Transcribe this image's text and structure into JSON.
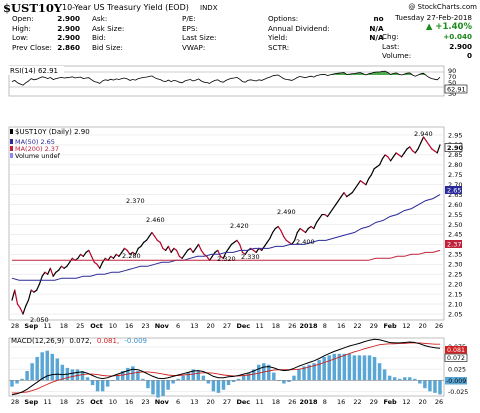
{
  "header": {
    "symbol": "$UST10Y",
    "description": "10-Year US Treasury Yield (EOD)",
    "exchange": "INDX",
    "copyright": "@ StockCharts.com",
    "date": "Tuesday  27-Feb-2018",
    "change_pct": "+1.40%",
    "stats": {
      "open_label": "Open:",
      "open": "2.900",
      "high_label": "High:",
      "high": "2.900",
      "low_label": "Low:",
      "low": "2.900",
      "prev_close_label": "Prev Close:",
      "prev_close": "2.860",
      "ask_label": "Ask:",
      "ask_size_label": "Ask Size:",
      "bid_label": "Bid:",
      "bid_size_label": "Bid Size:",
      "pe_label": "P/E:",
      "eps_label": "EPS:",
      "last_size_label": "Last Size:",
      "vwap_label": "VWAP:",
      "options_label": "Options:",
      "options": "no",
      "annual_div_label": "Annual Dividend:",
      "annual_div": "N/A",
      "yield_label": "Yield:",
      "yield": "N/A",
      "sctr_label": "SCTR:",
      "chg_label": "Chg:",
      "chg": "+0.040",
      "last_label": "Last:",
      "last": "2.900",
      "volume_label": "Volume:",
      "volume": "0"
    }
  },
  "rsi_panel": {
    "label": "RSI(14) 62.91",
    "current": "62.91",
    "ticks": [
      "90",
      "70",
      "50",
      "30",
      "10"
    ]
  },
  "price_panel": {
    "legend": {
      "price": "$UST10Y (Daily) 2.90",
      "ma50": "MA(50) 2.65",
      "ma200": "MA(200) 2.37",
      "volume": "Volume undef"
    },
    "y_ticks": [
      "2.95",
      "2.90",
      "2.85",
      "2.80",
      "2.75",
      "2.70",
      "2.65",
      "2.60",
      "2.55",
      "2.50",
      "2.45",
      "2.40",
      "2.35",
      "2.30",
      "2.25",
      "2.20",
      "2.15",
      "2.10",
      "2.05"
    ],
    "last_labels": {
      "price": "2.90",
      "ma50": "2.65",
      "ma200": "2.37"
    },
    "annotations": [
      "2.050",
      "2.370",
      "2.280",
      "2.460",
      "2.320",
      "2.330",
      "2.420",
      "2.490",
      "2.400",
      "2.940"
    ]
  },
  "x_axis": [
    "28",
    "Sep",
    "11",
    "18",
    "25",
    "Oct",
    "10",
    "16",
    "23",
    "Nov",
    "6",
    "13",
    "20",
    "27",
    "Dec",
    "11",
    "18",
    "26",
    "2018",
    "8",
    "16",
    "22",
    "29",
    "Feb",
    "12",
    "20",
    "26"
  ],
  "macd_panel": {
    "label_prefix": "MACD(12,26,9)",
    "macd_value": "0.072,",
    "signal_value": "0.081,",
    "hist_value": "-0.009",
    "ticks": [
      "0.075",
      "0.050",
      "0.025",
      "0.000",
      "-0.025"
    ],
    "last_labels": {
      "macd": "0.072",
      "signal": "0.081",
      "hist": "-0.009"
    }
  },
  "colors": {
    "price": "#000000",
    "down_segments": "#b80028",
    "ma50": "#2a2a9a",
    "ma200": "#c0203a",
    "macd_signal": "#d02020",
    "histogram": "#5aa7d6",
    "rsi_fill": "#4aa84a"
  },
  "chart_data": [
    {
      "type": "line",
      "title": "$UST10Y 10-Year US Treasury Yield (EOD)",
      "ylim": [
        2.02,
        2.99
      ],
      "series": [
        {
          "name": "$UST10Y (Daily)",
          "values": [
            2.12,
            2.17,
            2.1,
            2.08,
            2.05,
            2.09,
            2.12,
            2.17,
            2.16,
            2.17,
            2.2,
            2.24,
            2.26,
            2.25,
            2.28,
            2.24,
            2.26,
            2.27,
            2.29,
            2.28,
            2.29,
            2.31,
            2.33,
            2.32,
            2.33,
            2.35,
            2.34,
            2.36,
            2.37,
            2.34,
            2.31,
            2.3,
            2.28,
            2.31,
            2.33,
            2.32,
            2.34,
            2.33,
            2.35,
            2.34,
            2.36,
            2.38,
            2.37,
            2.35,
            2.36,
            2.35,
            2.38,
            2.39,
            2.41,
            2.42,
            2.44,
            2.46,
            2.44,
            2.42,
            2.41,
            2.38,
            2.37,
            2.39,
            2.36,
            2.38,
            2.37,
            2.34,
            2.33,
            2.35,
            2.37,
            2.38,
            2.36,
            2.38,
            2.4,
            2.37,
            2.35,
            2.34,
            2.32,
            2.34,
            2.36,
            2.37,
            2.34,
            2.33,
            2.36,
            2.38,
            2.4,
            2.41,
            2.42,
            2.4,
            2.36,
            2.35,
            2.37,
            2.38,
            2.37,
            2.36,
            2.38,
            2.37,
            2.39,
            2.41,
            2.43,
            2.46,
            2.48,
            2.49,
            2.47,
            2.44,
            2.42,
            2.41,
            2.4,
            2.42,
            2.46,
            2.48,
            2.47,
            2.46,
            2.48,
            2.49,
            2.48,
            2.51,
            2.53,
            2.55,
            2.55,
            2.54,
            2.56,
            2.58,
            2.6,
            2.62,
            2.64,
            2.66,
            2.64,
            2.65,
            2.66,
            2.68,
            2.7,
            2.72,
            2.71,
            2.7,
            2.73,
            2.75,
            2.78,
            2.79,
            2.8,
            2.83,
            2.85,
            2.84,
            2.82,
            2.84,
            2.86,
            2.85,
            2.84,
            2.86,
            2.88,
            2.89,
            2.87,
            2.86,
            2.88,
            2.91,
            2.94,
            2.92,
            2.9,
            2.88,
            2.87,
            2.86,
            2.9
          ]
        },
        {
          "name": "MA(50)",
          "values": [
            2.23,
            2.22,
            2.22,
            2.22,
            2.22,
            2.22,
            2.22,
            2.23,
            2.23,
            2.23,
            2.24,
            2.24,
            2.25,
            2.25,
            2.26,
            2.26,
            2.27,
            2.28,
            2.29,
            2.29,
            2.3,
            2.31,
            2.31,
            2.32,
            2.32,
            2.33,
            2.34,
            2.34,
            2.35,
            2.35,
            2.36,
            2.36,
            2.37,
            2.37,
            2.38,
            2.38,
            2.38,
            2.39,
            2.39,
            2.4,
            2.4,
            2.4,
            2.41,
            2.42,
            2.42,
            2.43,
            2.44,
            2.45,
            2.46,
            2.48,
            2.49,
            2.51,
            2.52,
            2.54,
            2.55,
            2.57,
            2.58,
            2.6,
            2.62,
            2.63,
            2.65
          ]
        },
        {
          "name": "MA(200)",
          "values": [
            2.32,
            2.32,
            2.32,
            2.32,
            2.32,
            2.32,
            2.32,
            2.32,
            2.32,
            2.32,
            2.32,
            2.32,
            2.32,
            2.32,
            2.32,
            2.32,
            2.32,
            2.32,
            2.32,
            2.32,
            2.32,
            2.32,
            2.32,
            2.32,
            2.32,
            2.32,
            2.32,
            2.32,
            2.32,
            2.32,
            2.32,
            2.32,
            2.32,
            2.32,
            2.32,
            2.32,
            2.32,
            2.32,
            2.32,
            2.32,
            2.32,
            2.32,
            2.32,
            2.32,
            2.32,
            2.32,
            2.32,
            2.32,
            2.32,
            2.32,
            2.32,
            2.33,
            2.33,
            2.33,
            2.34,
            2.34,
            2.35,
            2.35,
            2.36,
            2.36,
            2.37
          ]
        }
      ]
    },
    {
      "type": "line",
      "title": "RSI(14) 62.91",
      "ylim": [
        0,
        100
      ],
      "series": [
        {
          "name": "RSI(14)",
          "values": [
            48,
            52,
            44,
            40,
            36,
            44,
            50,
            58,
            54,
            56,
            60,
            64,
            62,
            58,
            62,
            55,
            58,
            60,
            62,
            60,
            61,
            62,
            64,
            60,
            62,
            63,
            58,
            60,
            61,
            54,
            48,
            46,
            42,
            50,
            54,
            52,
            56,
            53,
            57,
            55,
            58,
            60,
            57,
            52,
            55,
            53,
            58,
            60,
            62,
            63,
            65,
            67,
            61,
            57,
            55,
            50,
            48,
            53,
            48,
            52,
            50,
            46,
            44,
            50,
            53,
            55,
            50,
            53,
            57,
            50,
            46,
            45,
            42,
            48,
            52,
            54,
            48,
            46,
            52,
            56,
            59,
            60,
            62,
            56,
            48,
            46,
            52,
            54,
            52,
            50,
            54,
            52,
            56,
            60,
            63,
            67,
            69,
            70,
            64,
            58,
            55,
            54,
            52,
            56,
            62,
            65,
            63,
            61,
            64,
            66,
            63,
            68,
            70,
            72,
            72,
            68,
            71,
            73,
            75,
            76,
            77,
            78,
            72,
            73,
            74,
            75,
            77,
            78,
            74,
            70,
            74,
            76,
            79,
            80,
            80,
            82,
            83,
            78,
            72,
            75,
            77,
            73,
            70,
            73,
            76,
            77,
            70,
            66,
            70,
            74,
            76,
            68,
            62,
            58,
            56,
            54,
            62.91
          ]
        }
      ]
    },
    {
      "type": "line",
      "title": "MACD(12,26,9)",
      "ylim": [
        -0.035,
        0.095
      ],
      "series": [
        {
          "name": "MACD",
          "values": [
            -0.032,
            -0.03,
            -0.026,
            -0.02,
            -0.012,
            -0.004,
            0.004,
            0.01,
            0.013,
            0.014,
            0.013,
            0.014,
            0.016,
            0.018,
            0.019,
            0.016,
            0.011,
            0.006,
            0.004,
            0.006,
            0.01,
            0.014,
            0.018,
            0.022,
            0.025,
            0.024,
            0.02,
            0.014,
            0.009,
            0.005,
            0.004,
            0.006,
            0.009,
            0.012,
            0.015,
            0.018,
            0.021,
            0.022,
            0.02,
            0.015,
            0.009,
            0.006,
            0.006,
            0.008,
            0.009,
            0.011,
            0.014,
            0.017,
            0.021,
            0.026,
            0.03,
            0.031,
            0.028,
            0.024,
            0.022,
            0.023,
            0.027,
            0.032,
            0.036,
            0.04,
            0.044,
            0.049,
            0.055,
            0.06,
            0.065,
            0.069,
            0.073,
            0.077,
            0.08,
            0.083,
            0.087,
            0.09,
            0.092,
            0.091,
            0.088,
            0.085,
            0.084,
            0.084,
            0.085,
            0.086,
            0.085,
            0.082,
            0.078,
            0.075,
            0.073,
            0.072
          ]
        },
        {
          "name": "Signal",
          "values": [
            -0.028,
            -0.028,
            -0.027,
            -0.026,
            -0.023,
            -0.019,
            -0.014,
            -0.009,
            -0.004,
            0.0,
            0.003,
            0.006,
            0.009,
            0.011,
            0.013,
            0.014,
            0.014,
            0.013,
            0.011,
            0.01,
            0.01,
            0.011,
            0.012,
            0.014,
            0.016,
            0.018,
            0.019,
            0.019,
            0.018,
            0.016,
            0.014,
            0.012,
            0.011,
            0.011,
            0.012,
            0.013,
            0.014,
            0.016,
            0.017,
            0.017,
            0.016,
            0.014,
            0.012,
            0.011,
            0.01,
            0.01,
            0.011,
            0.012,
            0.014,
            0.016,
            0.019,
            0.021,
            0.023,
            0.024,
            0.024,
            0.024,
            0.024,
            0.025,
            0.027,
            0.03,
            0.033,
            0.036,
            0.04,
            0.044,
            0.048,
            0.052,
            0.056,
            0.06,
            0.064,
            0.067,
            0.071,
            0.074,
            0.077,
            0.08,
            0.081,
            0.082,
            0.082,
            0.083,
            0.083,
            0.084,
            0.084,
            0.084,
            0.083,
            0.082,
            0.081,
            0.081
          ]
        }
      ]
    }
  ]
}
